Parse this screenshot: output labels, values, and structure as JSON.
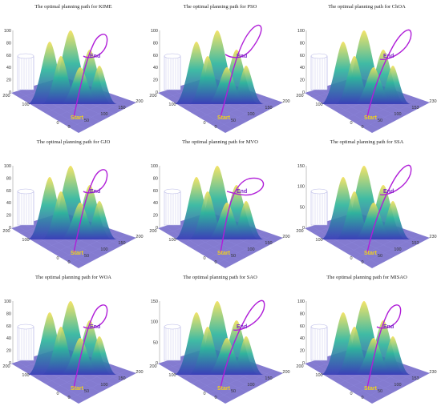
{
  "colors": {
    "path": "#b01ed8",
    "start": "#f2d21a",
    "end": "#7a22c8",
    "floor": "#6f64c8",
    "peak_low": "#3b3fb8",
    "peak_mid": "#2fb59c",
    "peak_high": "#f3e15a",
    "obstacle": "#b9b9e6"
  },
  "chart_data": [
    {
      "type": "surface-3d",
      "title": "The optimal planning path for KIME",
      "zticks": [
        "100",
        "80",
        "60",
        "40",
        "20",
        "0"
      ],
      "xticks": [
        "200",
        "100",
        "0"
      ],
      "yticks": [
        "0",
        "50",
        "100",
        "150",
        "200"
      ],
      "start_label": "Start",
      "end_label": "End",
      "path_variant": "loop-small"
    },
    {
      "type": "surface-3d",
      "title": "The optimal planning path for PSO",
      "zticks": [
        "100",
        "80",
        "60",
        "40",
        "20",
        "0"
      ],
      "xticks": [
        "200",
        "100",
        "0"
      ],
      "yticks": [
        "0",
        "50",
        "100",
        "150",
        "200"
      ],
      "start_label": "Start",
      "end_label": "End",
      "path_variant": "loop-high"
    },
    {
      "type": "surface-3d",
      "title": "The optimal planning path for ChOA",
      "zticks": [
        "100",
        "80",
        "60",
        "40",
        "20",
        "0"
      ],
      "xticks": [
        "200",
        "100",
        "0"
      ],
      "yticks": [
        "0",
        "50",
        "100",
        "153",
        "230"
      ],
      "start_label": "Start",
      "end_label": "End",
      "path_variant": "loop-tall"
    },
    {
      "type": "surface-3d",
      "title": "The optimal planning path for GJO",
      "zticks": [
        "100",
        "80",
        "60",
        "40",
        "20",
        "0"
      ],
      "xticks": [
        "200",
        "100",
        "0"
      ],
      "yticks": [
        "0",
        "50",
        "100",
        "150",
        "200"
      ],
      "start_label": "Start",
      "end_label": "End",
      "path_variant": "loop-small"
    },
    {
      "type": "surface-3d",
      "title": "The optimal planning path for MVO",
      "zticks": [
        "100",
        "80",
        "60",
        "40",
        "20",
        "0"
      ],
      "xticks": [
        "200",
        "100",
        "0"
      ],
      "yticks": [
        "0",
        "50",
        "100",
        "150",
        "200"
      ],
      "start_label": "Start",
      "end_label": "End",
      "path_variant": "loop-wide"
    },
    {
      "type": "surface-3d",
      "title": "The optimal planning path for SSA",
      "zticks": [
        "150",
        "100",
        "50",
        "0"
      ],
      "xticks": [
        "200",
        "100",
        "0"
      ],
      "yticks": [
        "0",
        "50",
        "100",
        "153",
        "230"
      ],
      "start_label": "Start",
      "end_label": "End",
      "path_variant": "loop-tall"
    },
    {
      "type": "surface-3d",
      "title": "The optimal planning path for WOA",
      "zticks": [
        "100",
        "80",
        "60",
        "40",
        "20",
        "0"
      ],
      "xticks": [
        "200",
        "100",
        "0"
      ],
      "yticks": [
        "0",
        "50",
        "100",
        "150",
        "200"
      ],
      "start_label": "Start",
      "end_label": "End",
      "path_variant": "loop-small"
    },
    {
      "type": "surface-3d",
      "title": "The optimal planning path for SAO",
      "zticks": [
        "150",
        "100",
        "50",
        "0"
      ],
      "xticks": [
        "200",
        "100",
        "0"
      ],
      "yticks": [
        "0",
        "50",
        "100",
        "150",
        "200"
      ],
      "start_label": "Start",
      "end_label": "End",
      "path_variant": "loop-tall"
    },
    {
      "type": "surface-3d",
      "title": "The optimal planning path for MISAO",
      "zticks": [
        "100",
        "80",
        "60",
        "40",
        "20",
        "0"
      ],
      "xticks": [
        "200",
        "100",
        "0"
      ],
      "yticks": [
        "0",
        "50",
        "100",
        "153",
        "230"
      ],
      "start_label": "Start",
      "end_label": "End",
      "path_variant": "loop-small"
    }
  ]
}
